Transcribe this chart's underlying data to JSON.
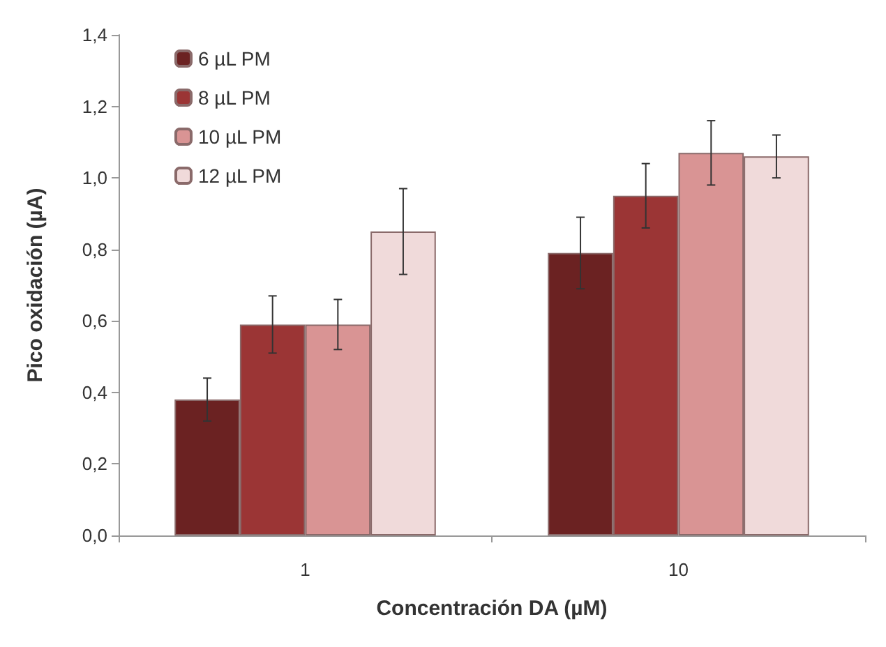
{
  "chart_data": {
    "type": "bar",
    "xlabel": "Concentración DA (µM)",
    "ylabel": "Pico oxidación (µA)",
    "categories": [
      "1",
      "10"
    ],
    "series": [
      {
        "name": "6 µL PM",
        "color": "#6b2222",
        "values": [
          0.38,
          0.79
        ],
        "errors": [
          0.06,
          0.1
        ]
      },
      {
        "name": "8 µL PM",
        "color": "#9b3535",
        "values": [
          0.59,
          0.95
        ],
        "errors": [
          0.08,
          0.09
        ]
      },
      {
        "name": "10 µL PM",
        "color": "#d99494",
        "values": [
          0.59,
          1.07
        ],
        "errors": [
          0.07,
          0.09
        ]
      },
      {
        "name": "12 µL PM",
        "color": "#f0dada",
        "values": [
          0.85,
          1.06
        ],
        "errors": [
          0.12,
          0.06
        ]
      }
    ],
    "ylim": [
      0,
      1.4
    ],
    "yticks": [
      {
        "value": 0,
        "label": "0,0"
      },
      {
        "value": 0.2,
        "label": "0,2"
      },
      {
        "value": 0.4,
        "label": "0,4"
      },
      {
        "value": 0.6,
        "label": "0,6"
      },
      {
        "value": 0.8,
        "label": "0,8"
      },
      {
        "value": 1.0,
        "label": "1,0"
      },
      {
        "value": 1.2,
        "label": "1,2"
      },
      {
        "value": 1.4,
        "label": "1,4"
      }
    ],
    "grid": false,
    "legend": "top left"
  }
}
